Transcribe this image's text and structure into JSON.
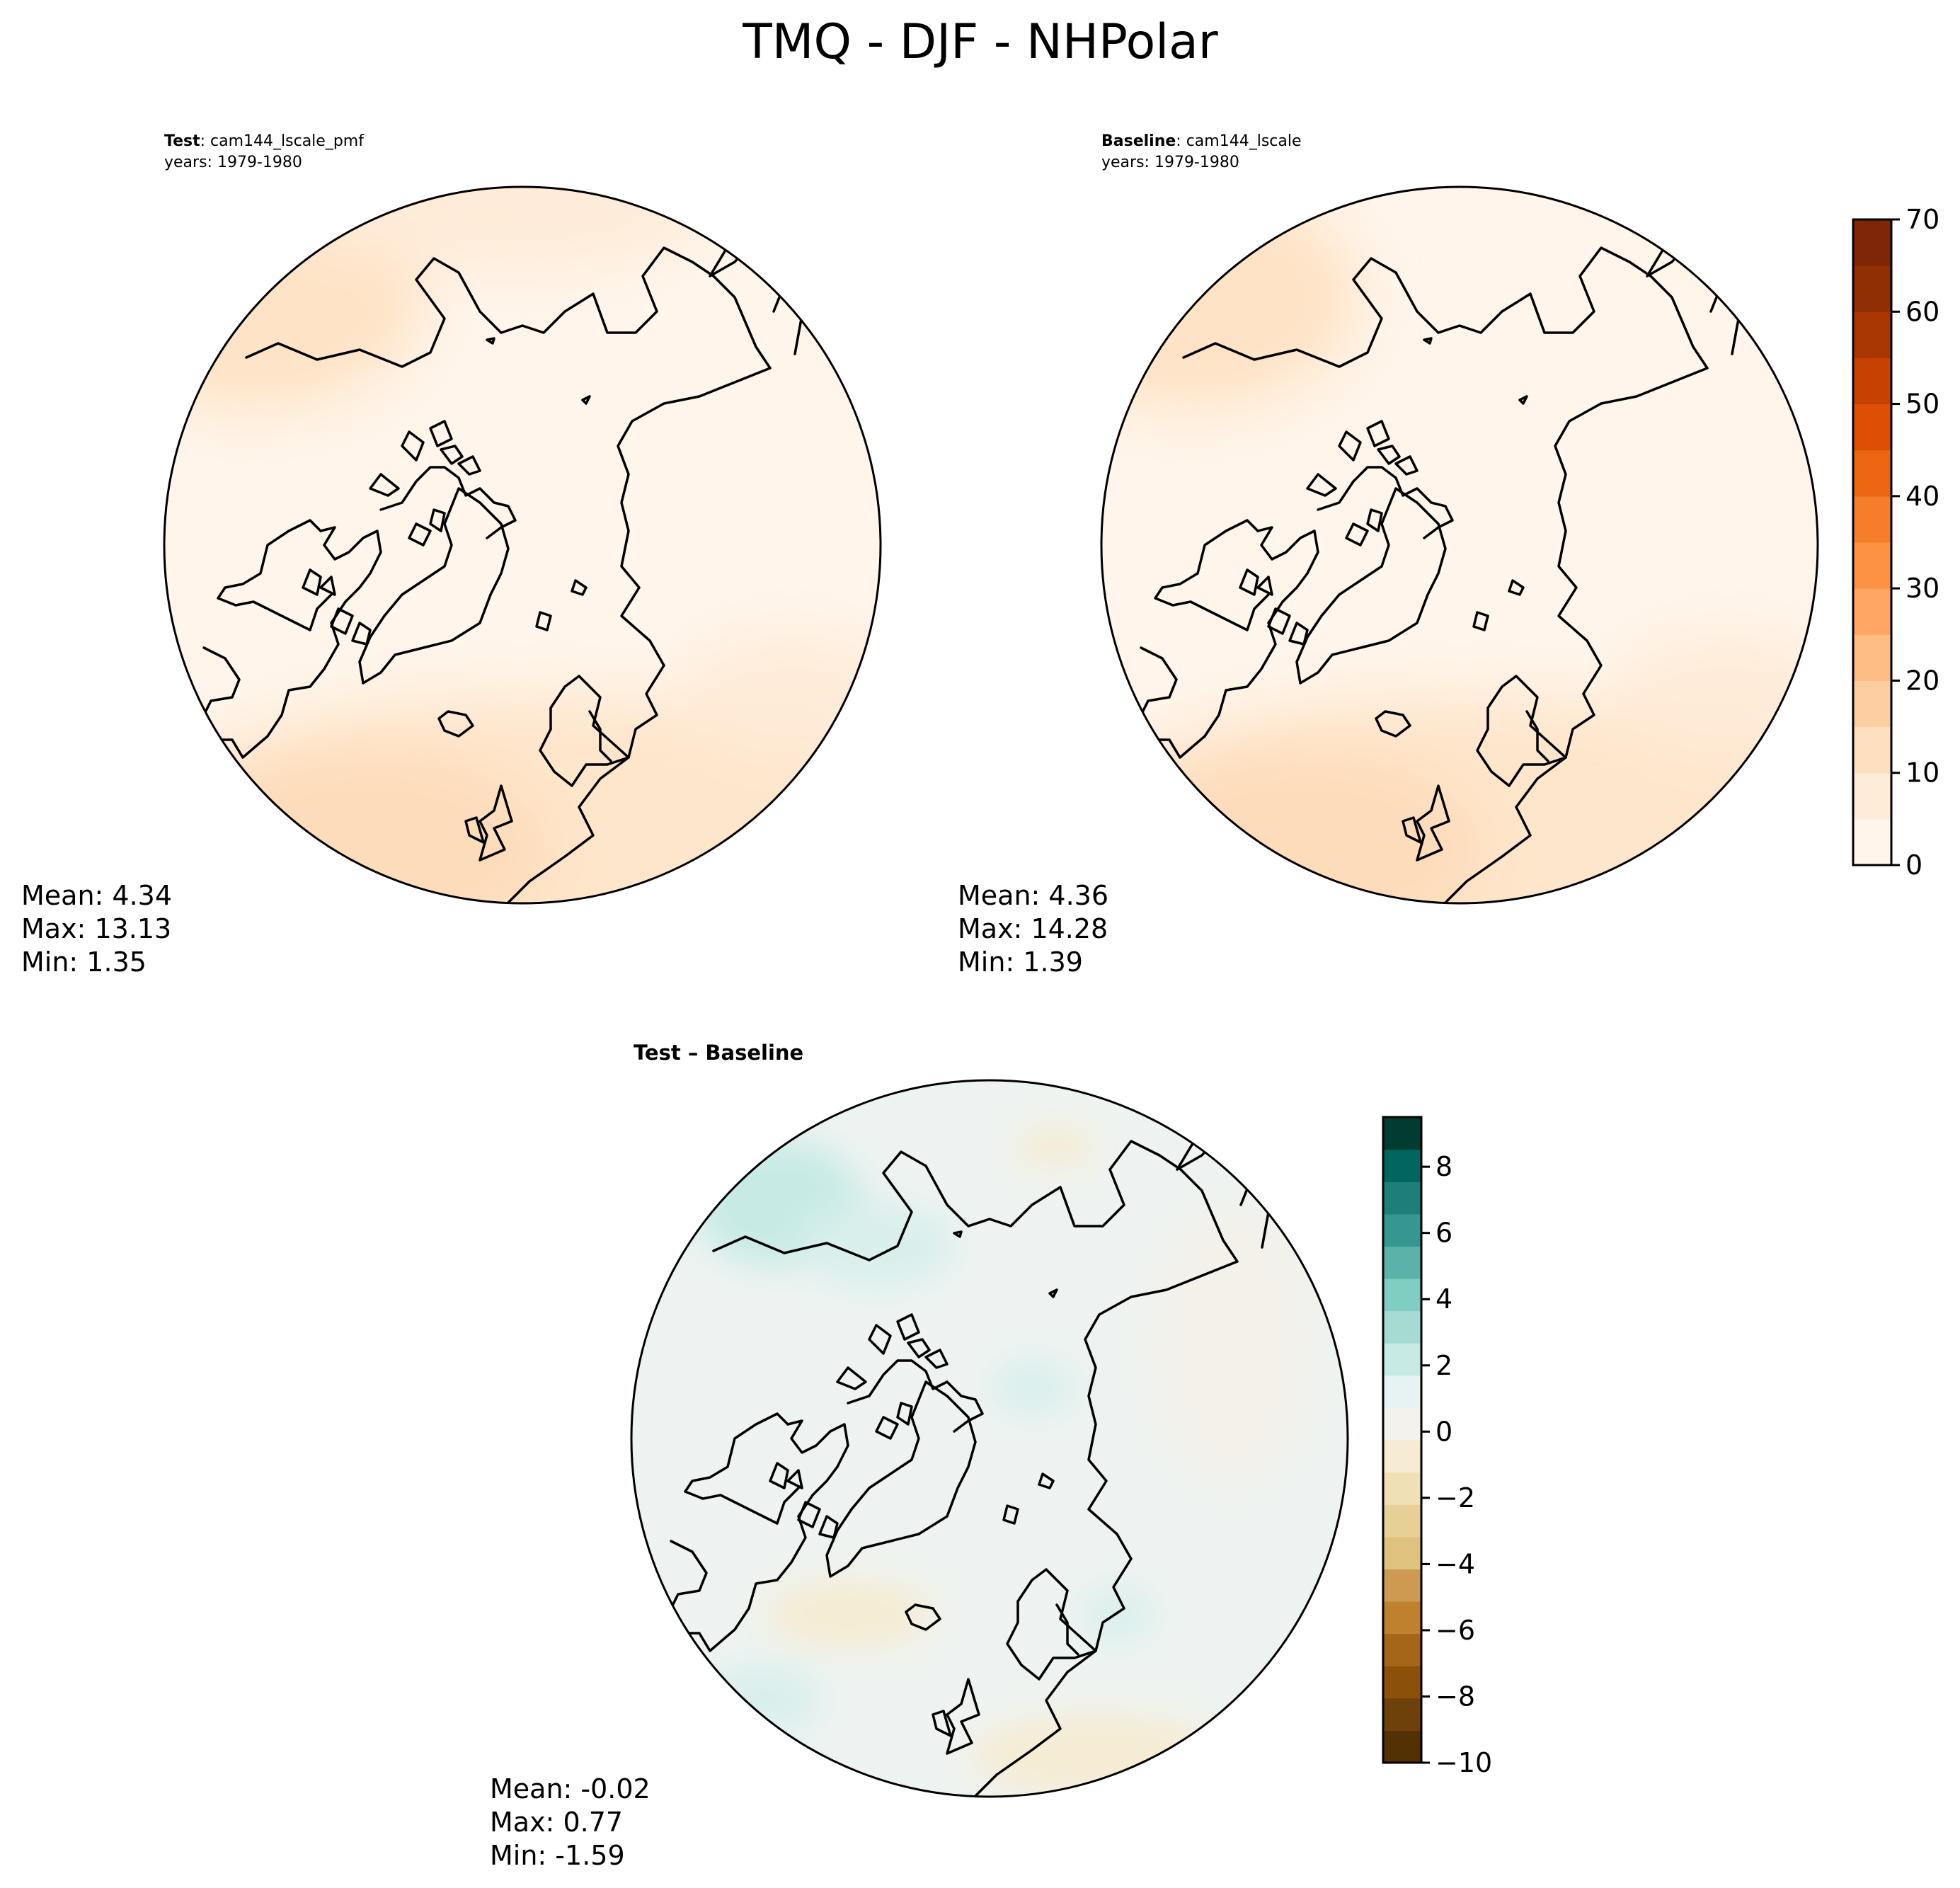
{
  "figure": {
    "title": "TMQ - DJF - NHPolar"
  },
  "panels": [
    {
      "id": "test",
      "label_bold": "Test",
      "label_rest": ": cam144_lscale_pmf",
      "years": "years: 1979-1980",
      "stats": {
        "mean": "Mean:  4.34",
        "max": "Max: 13.13",
        "min": "Min:  1.35"
      },
      "field": "abs"
    },
    {
      "id": "baseline",
      "label_bold": "Baseline",
      "label_rest": ": cam144_lscale",
      "years": "years: 1979-1980",
      "stats": {
        "mean": "Mean:  4.36",
        "max": "Max: 14.28",
        "min": "Min:  1.39"
      },
      "field": "abs"
    },
    {
      "id": "diff",
      "label_bold": "Test – Baseline",
      "stats": {
        "mean": "Mean: -0.02",
        "max": "Max:  0.77",
        "min": "Min: -1.59"
      },
      "field": "diff"
    }
  ],
  "colorbars": {
    "abs": {
      "vmin": 0,
      "vmax": 70,
      "step": 5,
      "ticks": [
        "0",
        "10",
        "20",
        "30",
        "40",
        "50",
        "60",
        "70"
      ],
      "colors": [
        "#fff5eb",
        "#feebd8",
        "#fee0c1",
        "#fdcfa0",
        "#fdbd83",
        "#fda762",
        "#fd9243",
        "#f67e2a",
        "#ed6511",
        "#de4f05",
        "#c64102",
        "#a83703",
        "#8f2f03",
        "#7f2704"
      ]
    },
    "diff": {
      "vmin": -10,
      "vmax": 9.5,
      "step": 1,
      "ticks": [
        "8",
        "6",
        "4",
        "2",
        "0",
        "−2",
        "−4",
        "−6",
        "−8",
        "−10"
      ],
      "colors": [
        "#543005",
        "#6e400a",
        "#8b510a",
        "#a5661a",
        "#bf812d",
        "#cd9a52",
        "#dfc27d",
        "#e7d096",
        "#f0e0b5",
        "#f5ecd3",
        "#f3f2ec",
        "#e6f3f2",
        "#c7eae5",
        "#a5dbd3",
        "#80cdc1",
        "#5ab2a8",
        "#35978f",
        "#1d7f78",
        "#01665e",
        "#003c30"
      ]
    }
  }
}
